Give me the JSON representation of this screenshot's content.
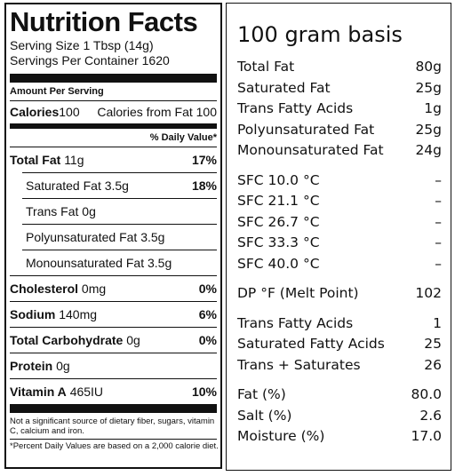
{
  "nutrition_facts": {
    "title": "Nutrition Facts",
    "serving_size": "Serving Size 1 Tbsp (14g)",
    "servings_per_container": "Servings Per Container 1620",
    "amount_per_serving": "Amount Per Serving",
    "calories": {
      "label": "Calories",
      "value": "100",
      "from_fat_label": "Calories from Fat",
      "from_fat_value": "100"
    },
    "daily_value_header": "% Daily Value*",
    "rows": [
      {
        "label": "Total Fat",
        "amount": "11g",
        "daily_value": "17%",
        "sub_rows": [
          {
            "label": "Saturated Fat",
            "amount": "3.5g",
            "daily_value": "18%"
          },
          {
            "label": "Trans Fat",
            "amount": "0g"
          },
          {
            "label": "Polyunsaturated Fat",
            "amount": "3.5g"
          },
          {
            "label": "Monounsaturated Fat",
            "amount": "3.5g"
          }
        ]
      },
      {
        "label": "Cholesterol",
        "amount": "0mg",
        "daily_value": "0%"
      },
      {
        "label": "Sodium",
        "amount": "140mg",
        "daily_value": "6%"
      },
      {
        "label": "Total Carbohydrate",
        "amount": "0g",
        "daily_value": "0%"
      },
      {
        "label": "Protein",
        "amount": "0g"
      },
      {
        "label": "Vitamin A",
        "amount": "465IU",
        "daily_value": "10%"
      }
    ],
    "footnote": "Not a significant source of dietary fiber, sugars, vitamin C, calcium and iron.",
    "daily_value_note": "*Percent Daily Values are based on a 2,000 calorie diet."
  },
  "basis": {
    "title": "100 gram basis",
    "groups": [
      [
        [
          "Total Fat",
          "80g"
        ],
        [
          "Saturated Fat",
          "25g"
        ],
        [
          "Trans Fatty Acids",
          "1g"
        ],
        [
          "Polyunsaturated Fat",
          "25g"
        ],
        [
          "Monounsaturated Fat",
          "24g"
        ]
      ],
      [
        [
          "SFC 10.0 °C",
          "–"
        ],
        [
          "SFC 21.1 °C",
          "–"
        ],
        [
          "SFC 26.7 °C",
          "–"
        ],
        [
          "SFC 33.3 °C",
          "–"
        ],
        [
          "SFC 40.0 °C",
          "–"
        ]
      ],
      [
        [
          "DP °F (Melt Point)",
          "102"
        ]
      ],
      [
        [
          "Trans Fatty Acids",
          "1"
        ],
        [
          "Saturated Fatty Acids",
          "25"
        ],
        [
          "Trans + Saturates",
          "26"
        ]
      ],
      [
        [
          "Fat (%)",
          "80.0"
        ],
        [
          "Salt (%)",
          "2.6"
        ],
        [
          "Moisture (%)",
          "17.0"
        ]
      ]
    ]
  }
}
